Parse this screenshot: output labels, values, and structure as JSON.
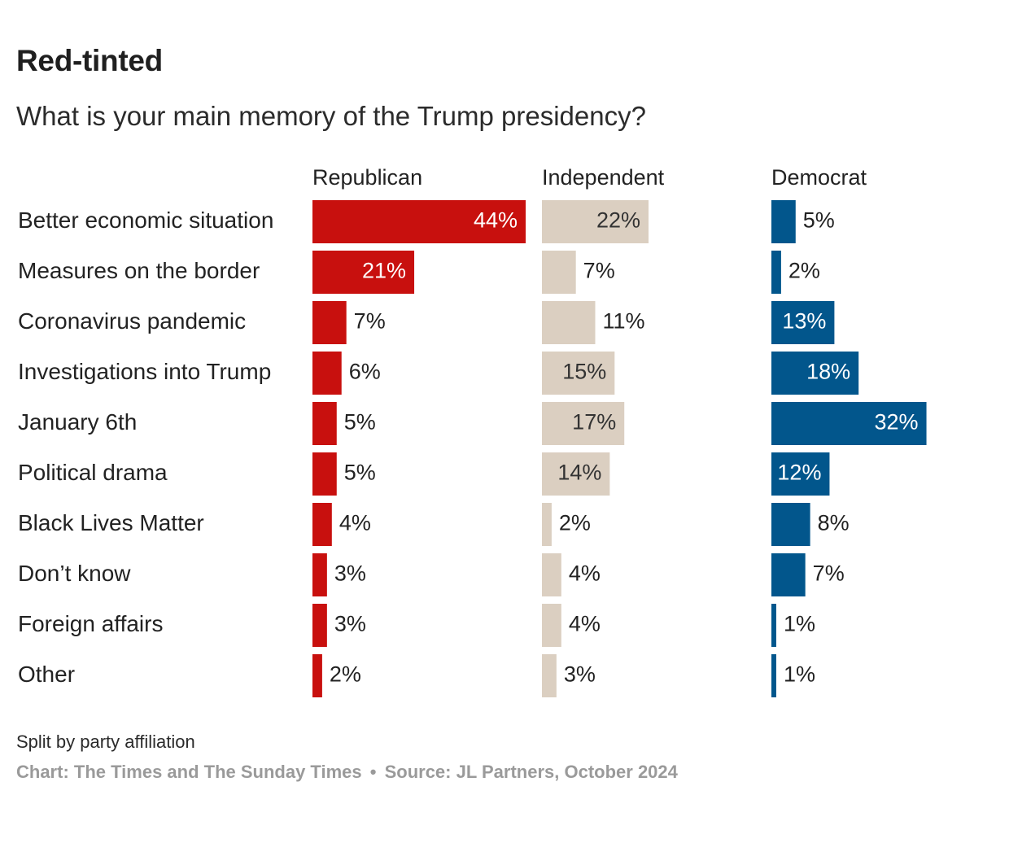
{
  "title": "Red-tinted",
  "subtitle": "What is your main memory of the Trump presidency?",
  "footer": {
    "note": "Split by party affiliation",
    "credit": "Chart: The Times and The Sunday Times",
    "separator": "•",
    "source": "Source: JL Partners, October 2024"
  },
  "colors": {
    "republican": "#c8100e",
    "independent": "#dbcfc1",
    "democrat": "#02568c",
    "text": "#222222",
    "label_inside": "#ffffff",
    "label_inside_independent": "#333333"
  },
  "chart_data": {
    "type": "bar",
    "orientation": "horizontal",
    "categories": [
      "Better economic situation",
      "Measures on the border",
      "Coronavirus pandemic",
      "Investigations into Trump",
      "January 6th",
      "Political drama",
      "Black Lives Matter",
      "Don’t know",
      "Foreign affairs",
      "Other"
    ],
    "series": [
      {
        "name": "Republican",
        "values": [
          44,
          21,
          7,
          6,
          5,
          5,
          4,
          3,
          3,
          2
        ],
        "labels": [
          "44%",
          "21%",
          "7%",
          "6%",
          "5%",
          "5%",
          "4%",
          "3%",
          "3%",
          "2%"
        ]
      },
      {
        "name": "Independent",
        "values": [
          22,
          7,
          11,
          15,
          17,
          14,
          2,
          4,
          4,
          3
        ],
        "labels": [
          "22%",
          "7%",
          "11%",
          "15%",
          "17%",
          "14%",
          "2%",
          "4%",
          "4%",
          "3%"
        ]
      },
      {
        "name": "Democrat",
        "values": [
          5,
          2,
          13,
          18,
          32,
          12,
          8,
          7,
          1,
          1
        ],
        "labels": [
          "5%",
          "2%",
          "13%",
          "18%",
          "32%",
          "12%",
          "8%",
          "7%",
          "1%",
          "1%"
        ]
      }
    ],
    "unit": "%",
    "xlim": [
      0,
      44
    ],
    "grid": false,
    "legend": "column headers"
  }
}
